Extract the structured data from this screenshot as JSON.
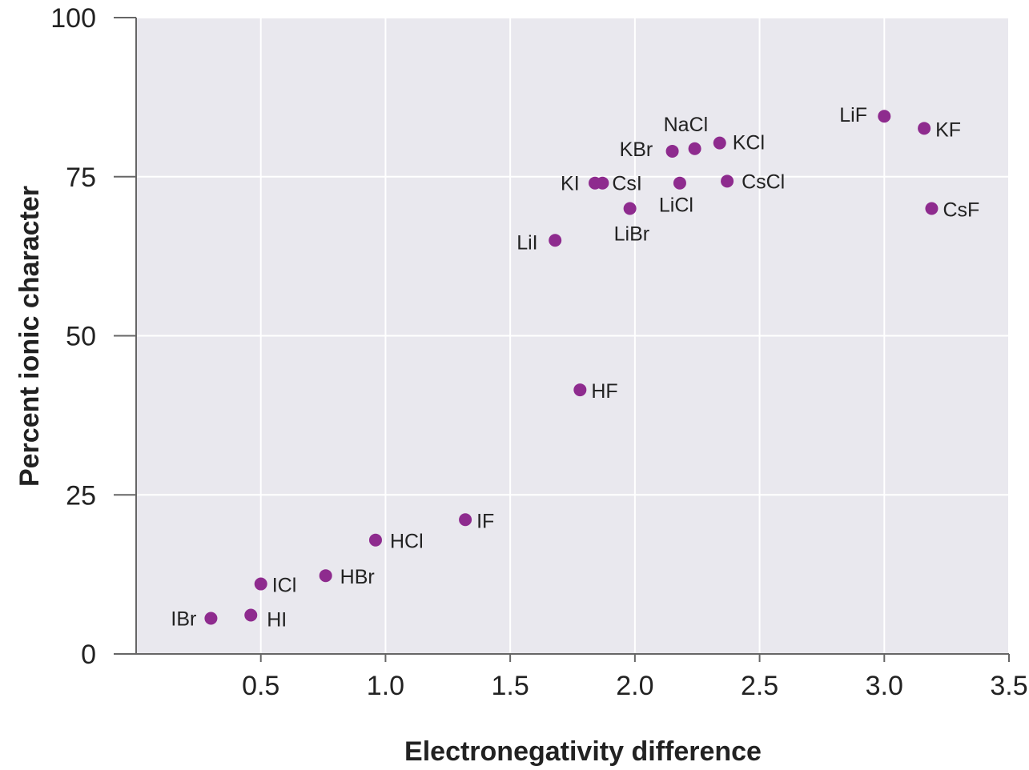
{
  "chart_data": {
    "type": "scatter",
    "title": "",
    "xlabel": "Electronegativity difference",
    "ylabel": "Percent ionic character",
    "xlim": [
      0,
      3.5
    ],
    "ylim": [
      0,
      100
    ],
    "xticks": [
      "0.5",
      "1.0",
      "1.5",
      "2.0",
      "2.5",
      "3.0",
      "3.5"
    ],
    "yticks": [
      "0",
      "25",
      "50",
      "75",
      "100"
    ],
    "grid": true,
    "point_color": "#8e2b8e",
    "plot_background": "#e9e8ee",
    "points": [
      {
        "label": "IBr",
        "x": 0.3,
        "y": 5.6
      },
      {
        "label": "HI",
        "x": 0.46,
        "y": 6.1
      },
      {
        "label": "ICl",
        "x": 0.5,
        "y": 11.0
      },
      {
        "label": "HBr",
        "x": 0.76,
        "y": 12.3
      },
      {
        "label": "HCl",
        "x": 0.96,
        "y": 17.9
      },
      {
        "label": "IF",
        "x": 1.32,
        "y": 21.1
      },
      {
        "label": "HF",
        "x": 1.78,
        "y": 41.5
      },
      {
        "label": "LiI",
        "x": 1.68,
        "y": 65.0
      },
      {
        "label": "KI",
        "x": 1.84,
        "y": 74.0
      },
      {
        "label": "CsI",
        "x": 1.87,
        "y": 74.0
      },
      {
        "label": "LiBr",
        "x": 1.98,
        "y": 70.0
      },
      {
        "label": "KBr",
        "x": 2.15,
        "y": 79.0
      },
      {
        "label": "NaCl",
        "x": 2.24,
        "y": 79.4
      },
      {
        "label": "LiCl",
        "x": 2.18,
        "y": 74.0
      },
      {
        "label": "KCl",
        "x": 2.34,
        "y": 80.3
      },
      {
        "label": "CsCl",
        "x": 2.37,
        "y": 74.3
      },
      {
        "label": "LiF",
        "x": 3.0,
        "y": 84.5
      },
      {
        "label": "KF",
        "x": 3.16,
        "y": 82.6
      },
      {
        "label": "CsF",
        "x": 3.19,
        "y": 70.0
      }
    ]
  }
}
